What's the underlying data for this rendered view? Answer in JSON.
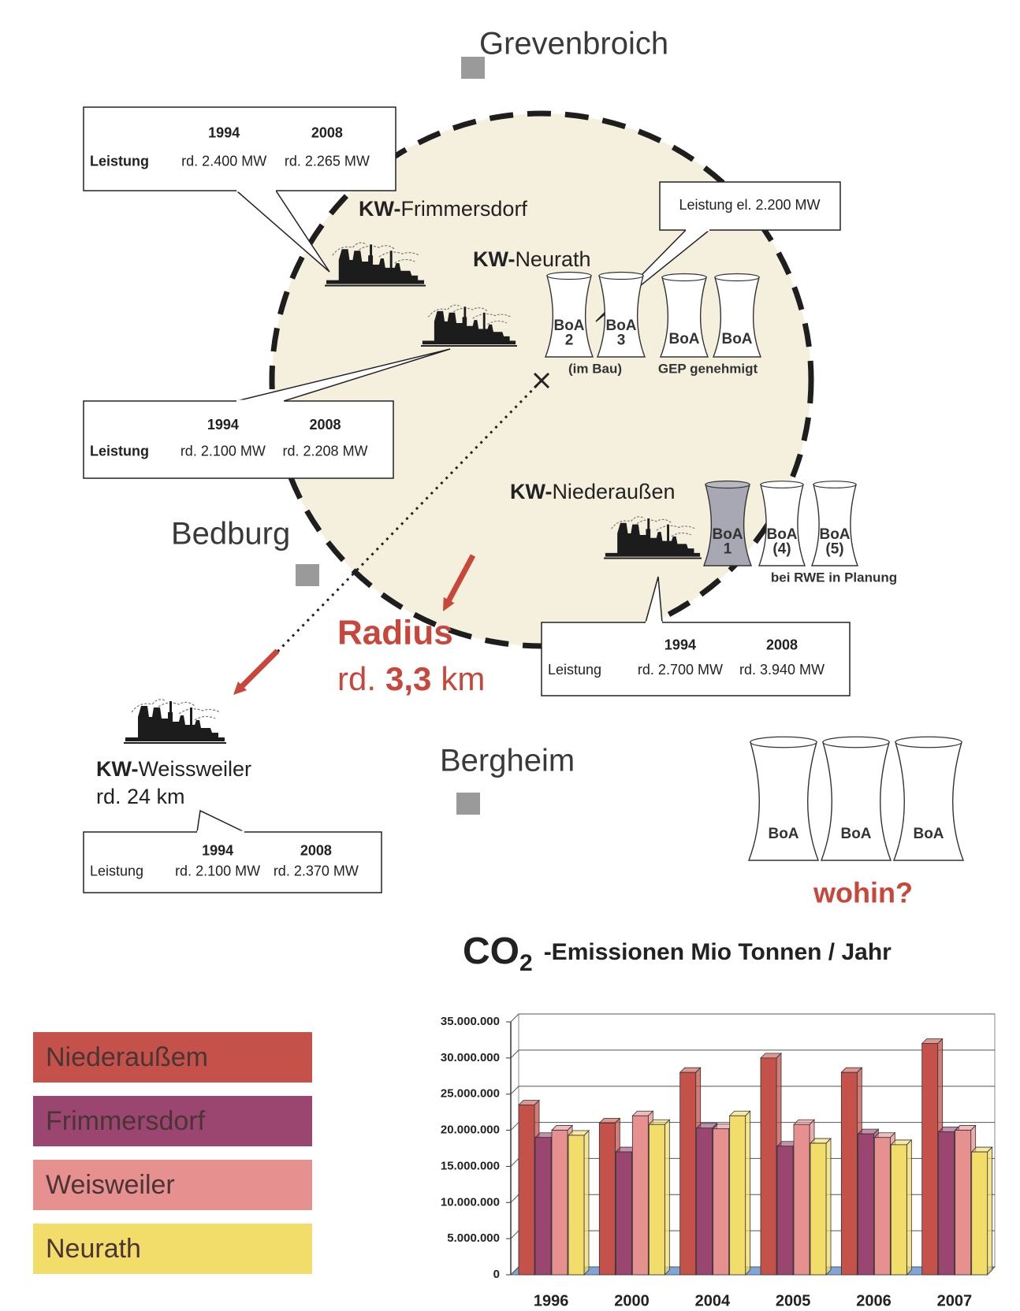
{
  "towns": [
    "Grevenbroich",
    "Bedburg",
    "Bergheim"
  ],
  "plants": [
    {
      "prefix": "KW-",
      "name": "Frimmersdorf"
    },
    {
      "prefix": "KW-",
      "name": "Neurath"
    },
    {
      "prefix": "KW-",
      "name": "Niederaußen"
    },
    {
      "prefix": "KW-",
      "name": "Weissweiler",
      "distance": "rd. 24 km"
    }
  ],
  "capacity_boxes": [
    {
      "years": [
        1994,
        2008
      ],
      "label": "Leistung",
      "values": [
        "rd.  2.400 MW",
        "rd. 2.265 MW"
      ]
    },
    {
      "years": [
        1994,
        2008
      ],
      "label": "Leistung",
      "values": [
        "rd.  2.100 MW",
        "rd.  2.208 MW"
      ]
    },
    {
      "years": [
        1994,
        2008
      ],
      "label": "Leistung",
      "values": [
        "rd.  2.700 MW",
        "rd. 3.940 MW"
      ]
    },
    {
      "years": [
        1994,
        2008
      ],
      "label": "Leistung",
      "values": [
        "rd.  2.100 MW",
        "rd.  2.370 MW"
      ]
    }
  ],
  "neurath_el": "Leistung el.  2.200 MW",
  "towers": [
    {
      "label": "BoA",
      "number": "2"
    },
    {
      "label": "BoA",
      "number": "3"
    },
    {
      "label": "BoA"
    },
    {
      "label": "BoA"
    },
    {
      "label": "BoA",
      "number": "1"
    },
    {
      "label": "BoA",
      "number": "(4)"
    },
    {
      "label": "BoA",
      "number": "(5)"
    },
    {
      "label": "BoA"
    },
    {
      "label": "BoA"
    },
    {
      "label": "BoA"
    }
  ],
  "tower_notes": [
    "(im Bau)",
    "GEP genehmigt",
    "bei RWE in Planung"
  ],
  "radius": {
    "title": "Radius",
    "parts": [
      "rd.",
      "3,3",
      "km"
    ]
  },
  "question": "wohin?",
  "chart_data": {
    "type": "bar",
    "title_parts": [
      "CO",
      "2",
      "-Emissionen Mio Tonnen / Jahr"
    ],
    "categories": [
      "1996",
      "2000",
      "2004",
      "2005",
      "2006",
      "2007"
    ],
    "series": [
      {
        "name": "Niederaußem",
        "color": "#c5524a",
        "values": [
          23500000,
          21000000,
          28000000,
          30000000,
          28000000,
          32000000
        ]
      },
      {
        "name": "Frimmersdorf",
        "color": "#9b4670",
        "values": [
          19000000,
          17000000,
          20300000,
          17800000,
          19500000,
          19800000
        ]
      },
      {
        "name": "Weisweiler",
        "color": "#e6908f",
        "values": [
          20000000,
          22000000,
          20200000,
          20800000,
          19000000,
          20000000
        ]
      },
      {
        "name": "Neurath",
        "color": "#f2dc6a",
        "values": [
          19300000,
          20800000,
          22000000,
          18200000,
          18000000,
          17000000
        ]
      }
    ],
    "ylim": [
      0,
      35000000
    ],
    "yticks": [
      0,
      {
        "value": 5000000,
        "label": "5.000.000"
      },
      {
        "value": 10000000,
        "label": "10.000.000"
      },
      {
        "value": 15000000,
        "label": "15.000.000"
      },
      {
        "value": 20000000,
        "label": "20.000.000"
      },
      {
        "value": 25000000,
        "label": "25.000.000"
      },
      {
        "value": 30000000,
        "label": "30.000.000"
      },
      {
        "value": 35000000,
        "label": "35.000.000"
      }
    ],
    "grid": true
  }
}
